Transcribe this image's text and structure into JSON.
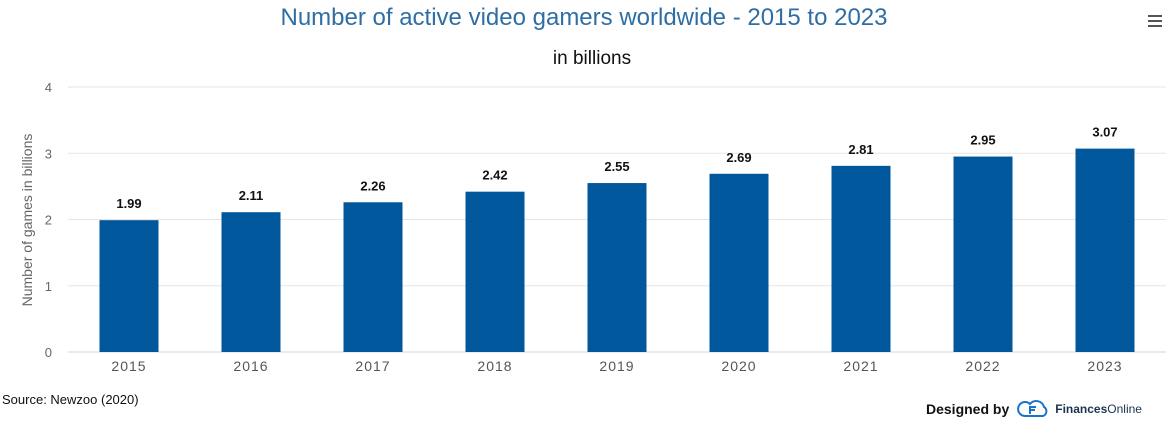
{
  "header": {
    "title": "Number of active video gamers worldwide - 2015 to 2023",
    "subtitle": "in billions",
    "menu_icon": "hamburger-menu-icon"
  },
  "footer": {
    "source": "Source: Newzoo (2020)",
    "designed_by": "Designed by",
    "brand_bold": "Finances",
    "brand_light": "Online",
    "brand_icon": "finances-online-logo-icon"
  },
  "colors": {
    "bar": "#01579b",
    "title": "#2f6ea5",
    "grid": "#e6e6e6",
    "axis_text": "#666666"
  },
  "chart_data": {
    "type": "bar",
    "categories": [
      "2015",
      "2016",
      "2017",
      "2018",
      "2019",
      "2020",
      "2021",
      "2022",
      "2023"
    ],
    "values": [
      1.99,
      2.11,
      2.26,
      2.42,
      2.55,
      2.69,
      2.81,
      2.95,
      3.07
    ],
    "data_labels": [
      "1.99",
      "2.11",
      "2.26",
      "2.42",
      "2.55",
      "2.69",
      "2.81",
      "2.95",
      "3.07"
    ],
    "title": "Number of active video gamers worldwide - 2015 to 2023",
    "subtitle": "in billions",
    "xlabel": "",
    "ylabel": "Number of games in billions",
    "ylim": [
      0,
      4
    ],
    "yticks": [
      "0",
      "1",
      "2",
      "3",
      "4"
    ],
    "grid": true,
    "legend": "none"
  }
}
